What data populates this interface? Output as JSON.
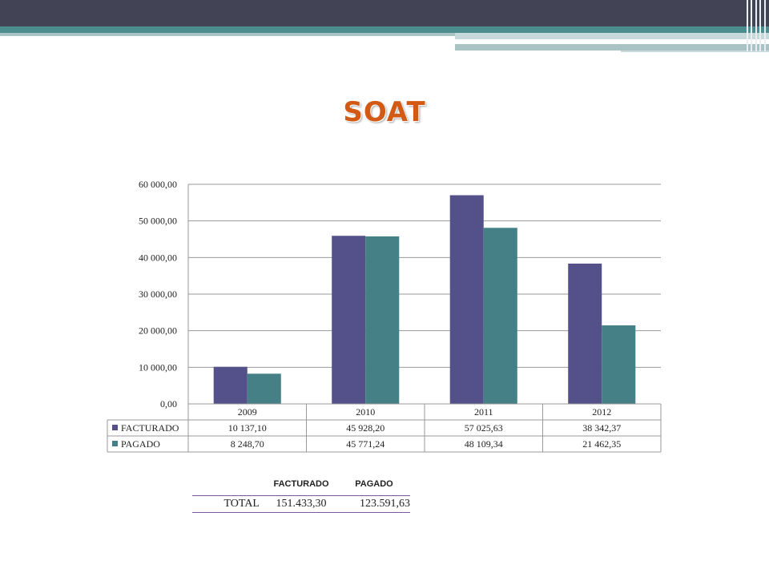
{
  "slide": {
    "title": "SOAT",
    "theme_colors": {
      "dark_bar": "#434356",
      "teal": "#4b8c8f",
      "title": "#d35a14"
    }
  },
  "chart_data": {
    "type": "bar",
    "categories": [
      "2009",
      "2010",
      "2011",
      "2012"
    ],
    "series": [
      {
        "name": "FACTURADO",
        "color": "#54508a",
        "values": [
          10137.1,
          45928.2,
          57025.63,
          38342.37
        ],
        "labels": [
          "10 137,10",
          "45 928,20",
          "57 025,63",
          "38 342,37"
        ]
      },
      {
        "name": "PAGADO",
        "color": "#448085",
        "values": [
          8248.7,
          45771.24,
          48109.34,
          21462.35
        ],
        "labels": [
          "8 248,70",
          "45 771,24",
          "48 109,34",
          "21 462,35"
        ]
      }
    ],
    "ylim": [
      0,
      60000
    ],
    "yticks": [
      0,
      10000,
      20000,
      30000,
      40000,
      50000,
      60000
    ],
    "ytick_labels": [
      "0,00",
      "10 000,00",
      "20 000,00",
      "30 000,00",
      "40 000,00",
      "50 000,00",
      "60 000,00"
    ],
    "grid": true,
    "legend": "data-table"
  },
  "totals": {
    "headers": [
      "FACTURADO",
      "PAGADO"
    ],
    "row_label": "TOTAL",
    "values": [
      "151.433,30",
      "123.591,63"
    ]
  }
}
